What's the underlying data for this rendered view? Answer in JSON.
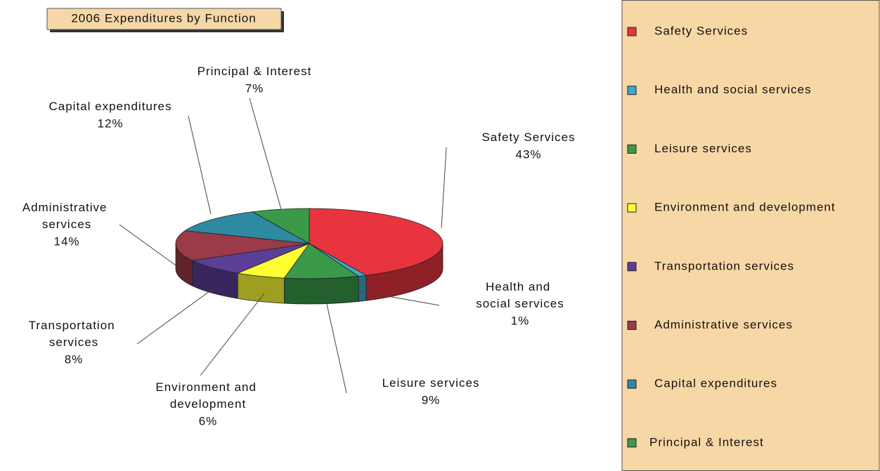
{
  "chart_data": {
    "type": "pie",
    "title": "2006 Expenditures by Function",
    "categories": [
      "Safety Services",
      "Health and social services",
      "Leisure services",
      "Environment and development",
      "Transportation services",
      "Administrative services",
      "Capital expenditures",
      "Principal & Interest"
    ],
    "values": [
      43,
      1,
      9,
      6,
      8,
      14,
      12,
      7
    ],
    "value_labels": [
      "43%",
      "1%",
      "9%",
      "6%",
      "8%",
      "14%",
      "12%",
      "7%"
    ],
    "colors": [
      "#e8343f",
      "#3fa9c9",
      "#3a9a4a",
      "#ffff33",
      "#5b3f96",
      "#9b3a48",
      "#2d8aa0",
      "#3a9a4a"
    ],
    "legend": "right"
  }
}
